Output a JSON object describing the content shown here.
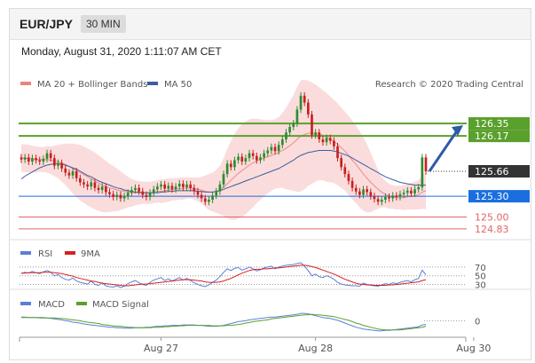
{
  "header": {
    "pair": "EUR/JPY",
    "timeframe": "30 MIN"
  },
  "timestamp": "Monday, August 31, 2020 1:11:07 AM CET",
  "copyright": "Research © 2020 Trading Central",
  "colors": {
    "candle_up": "#2e8b2e",
    "candle_down": "#c62020",
    "bollinger": "#f08080",
    "ma50": "#3a5fa0",
    "resistance": "#5aa02c",
    "support_blue": "#1a6fe0",
    "support_red": "#e06666",
    "arrow": "#2f5aa8",
    "rsi": "#5b7fd8",
    "rsi_ma": "#d62020",
    "macd": "#5b7fd8",
    "macd_signal": "#5aa02c"
  },
  "chart_data": [
    {
      "type": "candlestick",
      "legend": [
        {
          "name": "MA 20 + Bollinger Bands",
          "color": "#f08080"
        },
        {
          "name": "MA 50",
          "color": "#3a5fa0"
        }
      ],
      "ylim": [
        124.7,
        126.85
      ],
      "x_ticks": [
        {
          "label": "Aug 27",
          "index": 38
        },
        {
          "label": "Aug 28",
          "index": 80
        },
        {
          "label": "Aug 30",
          "index": 123
        }
      ],
      "levels": [
        {
          "label": "126.35",
          "value": 126.35,
          "color": "#5aa02c",
          "style": "solid",
          "tag": "box"
        },
        {
          "label": "126.17",
          "value": 126.17,
          "color": "#5aa02c",
          "style": "solid",
          "tag": "box"
        },
        {
          "label": "125.66",
          "value": 125.66,
          "color": "#333333",
          "style": "dotted",
          "tag": "box"
        },
        {
          "label": "125.30",
          "value": 125.3,
          "color": "#1a6fe0",
          "style": "solid",
          "tag": "box"
        },
        {
          "label": "125.00",
          "value": 125.0,
          "color": "#e06666",
          "style": "solid",
          "tag": "text"
        },
        {
          "label": "124.83",
          "value": 124.83,
          "color": "#e06666",
          "style": "solid",
          "tag": "text"
        }
      ],
      "close": [
        125.83,
        125.86,
        125.8,
        125.85,
        125.82,
        125.8,
        125.84,
        125.92,
        125.85,
        125.74,
        125.78,
        125.7,
        125.64,
        125.6,
        125.66,
        125.56,
        125.5,
        125.47,
        125.44,
        125.5,
        125.42,
        125.39,
        125.44,
        125.36,
        125.33,
        125.29,
        125.32,
        125.27,
        125.3,
        125.35,
        125.39,
        125.42,
        125.37,
        125.32,
        125.29,
        125.35,
        125.4,
        125.44,
        125.47,
        125.41,
        125.45,
        125.4,
        125.44,
        125.48,
        125.43,
        125.47,
        125.42,
        125.37,
        125.32,
        125.27,
        125.22,
        125.25,
        125.31,
        125.37,
        125.47,
        125.62,
        125.77,
        125.72,
        125.82,
        125.87,
        125.8,
        125.85,
        125.92,
        125.88,
        125.82,
        125.86,
        125.92,
        125.96,
        126.01,
        125.95,
        126.04,
        126.12,
        126.22,
        126.3,
        126.35,
        126.55,
        126.75,
        126.65,
        126.48,
        126.18,
        126.22,
        126.12,
        126.08,
        126.14,
        126.1,
        126.02,
        125.85,
        125.72,
        125.62,
        125.52,
        125.42,
        125.37,
        125.32,
        125.4,
        125.36,
        125.3,
        125.26,
        125.22,
        125.25,
        125.29,
        125.27,
        125.31,
        125.29,
        125.33,
        125.35,
        125.38,
        125.34,
        125.4,
        125.43,
        125.86,
        125.66
      ],
      "ma20": [
        125.85,
        125.85,
        125.84,
        125.84,
        125.83,
        125.83,
        125.83,
        125.83,
        125.82,
        125.81,
        125.8,
        125.78,
        125.76,
        125.73,
        125.7,
        125.67,
        125.64,
        125.61,
        125.58,
        125.55,
        125.52,
        125.49,
        125.46,
        125.44,
        125.42,
        125.41,
        125.39,
        125.38,
        125.37,
        125.36,
        125.35,
        125.35,
        125.35,
        125.35,
        125.35,
        125.35,
        125.36,
        125.37,
        125.37,
        125.38,
        125.39,
        125.4,
        125.4,
        125.41,
        125.41,
        125.42,
        125.42,
        125.41,
        125.4,
        125.39,
        125.37,
        125.36,
        125.36,
        125.37,
        125.39,
        125.43,
        125.48,
        125.53,
        125.58,
        125.63,
        125.67,
        125.71,
        125.75,
        125.78,
        125.81,
        125.83,
        125.85,
        125.87,
        125.89,
        125.91,
        125.93,
        125.96,
        125.99,
        126.03,
        126.07,
        126.12,
        126.17,
        126.19,
        126.21,
        126.21,
        126.21,
        126.2,
        126.18,
        126.15,
        126.12,
        126.09,
        126.05,
        126.0,
        125.95,
        125.89,
        125.82,
        125.76,
        125.69,
        125.62,
        125.56,
        125.5,
        125.45,
        125.4,
        125.36,
        125.33,
        125.3,
        125.29,
        125.28,
        125.28,
        125.28,
        125.29,
        125.3,
        125.31,
        125.32,
        125.36,
        125.38
      ],
      "bb_upper": [
        126.05,
        126.05,
        126.04,
        126.03,
        126.02,
        126.01,
        126.01,
        126.02,
        126.02,
        126.03,
        126.04,
        126.05,
        126.06,
        126.06,
        126.06,
        126.05,
        126.04,
        126.02,
        125.99,
        125.96,
        125.93,
        125.89,
        125.85,
        125.81,
        125.77,
        125.74,
        125.7,
        125.66,
        125.62,
        125.58,
        125.55,
        125.53,
        125.52,
        125.51,
        125.51,
        125.51,
        125.52,
        125.53,
        125.54,
        125.55,
        125.56,
        125.56,
        125.56,
        125.57,
        125.57,
        125.57,
        125.57,
        125.57,
        125.57,
        125.58,
        125.6,
        125.62,
        125.64,
        125.68,
        125.74,
        125.85,
        125.98,
        126.1,
        126.2,
        126.28,
        126.34,
        126.38,
        126.41,
        126.42,
        126.42,
        126.41,
        126.4,
        126.4,
        126.4,
        126.41,
        126.44,
        126.5,
        126.58,
        126.67,
        126.76,
        126.88,
        126.97,
        126.98,
        126.97,
        126.94,
        126.91,
        126.87,
        126.83,
        126.79,
        126.74,
        126.69,
        126.64,
        126.58,
        126.52,
        126.46,
        126.39,
        126.32,
        126.24,
        126.15,
        126.05,
        125.93,
        125.8,
        125.68,
        125.58,
        125.52,
        125.48,
        125.46,
        125.45,
        125.45,
        125.46,
        125.47,
        125.49,
        125.51,
        125.53,
        125.6,
        125.65
      ],
      "bb_lower": [
        125.65,
        125.65,
        125.64,
        125.65,
        125.64,
        125.65,
        125.65,
        125.64,
        125.62,
        125.59,
        125.56,
        125.51,
        125.46,
        125.4,
        125.34,
        125.29,
        125.24,
        125.2,
        125.17,
        125.14,
        125.11,
        125.09,
        125.07,
        125.07,
        125.07,
        125.08,
        125.08,
        125.1,
        125.12,
        125.14,
        125.15,
        125.17,
        125.18,
        125.19,
        125.19,
        125.19,
        125.2,
        125.21,
        125.2,
        125.21,
        125.22,
        125.24,
        125.24,
        125.25,
        125.25,
        125.27,
        125.27,
        125.25,
        125.23,
        125.2,
        125.14,
        125.1,
        125.08,
        125.06,
        125.04,
        125.01,
        124.98,
        124.96,
        124.96,
        124.98,
        125.0,
        125.04,
        125.09,
        125.14,
        125.2,
        125.25,
        125.3,
        125.34,
        125.38,
        125.41,
        125.42,
        125.42,
        125.4,
        125.39,
        125.38,
        125.36,
        125.37,
        125.4,
        125.45,
        125.48,
        125.51,
        125.53,
        125.53,
        125.51,
        125.5,
        125.49,
        125.46,
        125.42,
        125.38,
        125.32,
        125.25,
        125.2,
        125.14,
        125.09,
        125.07,
        125.07,
        125.1,
        125.12,
        125.14,
        125.14,
        125.12,
        125.12,
        125.11,
        125.11,
        125.1,
        125.11,
        125.11,
        125.11,
        125.11,
        125.12,
        125.11
      ],
      "ma50": [
        125.55,
        125.59,
        125.62,
        125.65,
        125.68,
        125.71,
        125.73,
        125.75,
        125.76,
        125.77,
        125.77,
        125.76,
        125.75,
        125.73,
        125.71,
        125.69,
        125.66,
        125.63,
        125.6,
        125.58,
        125.55,
        125.52,
        125.5,
        125.48,
        125.46,
        125.44,
        125.42,
        125.41,
        125.39,
        125.38,
        125.37,
        125.36,
        125.36,
        125.35,
        125.35,
        125.35,
        125.35,
        125.35,
        125.36,
        125.36,
        125.37,
        125.37,
        125.38,
        125.38,
        125.38,
        125.38,
        125.38,
        125.38,
        125.37,
        125.37,
        125.36,
        125.36,
        125.36,
        125.37,
        125.38,
        125.4,
        125.42,
        125.44,
        125.46,
        125.48,
        125.5,
        125.52,
        125.54,
        125.56,
        125.58,
        125.6,
        125.62,
        125.64,
        125.66,
        125.68,
        125.7,
        125.73,
        125.76,
        125.79,
        125.82,
        125.86,
        125.89,
        125.91,
        125.93,
        125.94,
        125.95,
        125.96,
        125.96,
        125.96,
        125.96,
        125.95,
        125.94,
        125.92,
        125.9,
        125.88,
        125.85,
        125.82,
        125.79,
        125.76,
        125.73,
        125.7,
        125.67,
        125.64,
        125.61,
        125.58,
        125.56,
        125.54,
        125.52,
        125.5,
        125.49,
        125.48,
        125.47,
        125.46,
        125.46,
        125.46,
        125.46
      ]
    },
    {
      "type": "line",
      "legend": [
        {
          "name": "RSI",
          "color": "#5b7fd8"
        },
        {
          "name": "9MA",
          "color": "#d62020"
        }
      ],
      "ylim": [
        25,
        80
      ],
      "y_ticks": [
        "70",
        "50",
        "30"
      ],
      "rsi": [
        55,
        58,
        56,
        60,
        57,
        55,
        59,
        62,
        58,
        50,
        53,
        46,
        42,
        40,
        45,
        38,
        35,
        33,
        31,
        38,
        30,
        28,
        34,
        27,
        25,
        24,
        27,
        23,
        26,
        32,
        36,
        39,
        34,
        30,
        28,
        35,
        40,
        43,
        46,
        39,
        43,
        38,
        42,
        46,
        40,
        44,
        39,
        34,
        30,
        27,
        25,
        29,
        35,
        40,
        48,
        58,
        66,
        62,
        67,
        69,
        63,
        66,
        70,
        66,
        61,
        64,
        68,
        70,
        72,
        66,
        70,
        72,
        74,
        75,
        76,
        78,
        80,
        72,
        62,
        50,
        54,
        48,
        46,
        50,
        47,
        42,
        35,
        31,
        29,
        28,
        27,
        27,
        26,
        33,
        30,
        28,
        27,
        26,
        29,
        32,
        30,
        34,
        32,
        35,
        37,
        39,
        36,
        41,
        44,
        63,
        52
      ],
      "ma9": [
        56,
        56,
        57,
        57,
        57,
        57,
        58,
        58,
        58,
        57,
        56,
        55,
        53,
        51,
        49,
        46,
        44,
        42,
        40,
        38,
        37,
        35,
        33,
        32,
        31,
        30,
        29,
        28,
        27,
        27,
        28,
        29,
        30,
        31,
        31,
        32,
        33,
        34,
        35,
        36,
        37,
        38,
        39,
        40,
        41,
        41,
        41,
        40,
        39,
        38,
        36,
        35,
        35,
        35,
        36,
        38,
        41,
        44,
        48,
        52,
        56,
        59,
        62,
        64,
        65,
        65,
        66,
        66,
        67,
        68,
        68,
        69,
        70,
        71,
        72,
        73,
        74,
        74,
        73,
        71,
        69,
        66,
        63,
        60,
        57,
        54,
        50,
        46,
        42,
        39,
        36,
        33,
        31,
        30,
        29,
        29,
        28,
        28,
        28,
        28,
        29,
        29,
        30,
        31,
        32,
        33,
        34,
        35,
        36,
        39,
        41
      ]
    },
    {
      "type": "line",
      "legend": [
        {
          "name": "MACD",
          "color": "#5b7fd8"
        },
        {
          "name": "MACD Signal",
          "color": "#5aa02c"
        }
      ],
      "ylim": [
        -0.32,
        0.22
      ],
      "y_ticks": [
        "0"
      ],
      "macd": [
        0.08,
        0.08,
        0.07,
        0.07,
        0.07,
        0.06,
        0.06,
        0.06,
        0.05,
        0.04,
        0.03,
        0.02,
        0.0,
        -0.01,
        -0.03,
        -0.04,
        -0.05,
        -0.07,
        -0.08,
        -0.09,
        -0.1,
        -0.11,
        -0.12,
        -0.13,
        -0.14,
        -0.14,
        -0.15,
        -0.15,
        -0.16,
        -0.16,
        -0.16,
        -0.15,
        -0.15,
        -0.15,
        -0.14,
        -0.14,
        -0.13,
        -0.12,
        -0.12,
        -0.11,
        -0.11,
        -0.1,
        -0.1,
        -0.1,
        -0.09,
        -0.09,
        -0.09,
        -0.09,
        -0.1,
        -0.1,
        -0.11,
        -0.12,
        -0.12,
        -0.12,
        -0.11,
        -0.1,
        -0.08,
        -0.06,
        -0.04,
        -0.02,
        -0.01,
        0.0,
        0.02,
        0.03,
        0.04,
        0.05,
        0.06,
        0.07,
        0.08,
        0.08,
        0.09,
        0.1,
        0.11,
        0.12,
        0.13,
        0.14,
        0.16,
        0.16,
        0.15,
        0.13,
        0.11,
        0.09,
        0.07,
        0.06,
        0.05,
        0.03,
        0.01,
        -0.02,
        -0.05,
        -0.08,
        -0.11,
        -0.14,
        -0.16,
        -0.18,
        -0.19,
        -0.2,
        -0.21,
        -0.22,
        -0.22,
        -0.21,
        -0.21,
        -0.2,
        -0.19,
        -0.18,
        -0.17,
        -0.16,
        -0.15,
        -0.14,
        -0.13,
        -0.09,
        -0.08
      ],
      "signal": [
        0.07,
        0.07,
        0.07,
        0.07,
        0.07,
        0.07,
        0.07,
        0.06,
        0.06,
        0.06,
        0.05,
        0.05,
        0.04,
        0.03,
        0.02,
        0.01,
        0.0,
        -0.02,
        -0.03,
        -0.04,
        -0.05,
        -0.06,
        -0.08,
        -0.09,
        -0.1,
        -0.11,
        -0.12,
        -0.12,
        -0.13,
        -0.14,
        -0.14,
        -0.15,
        -0.15,
        -0.15,
        -0.15,
        -0.15,
        -0.14,
        -0.14,
        -0.14,
        -0.13,
        -0.13,
        -0.12,
        -0.12,
        -0.11,
        -0.11,
        -0.1,
        -0.1,
        -0.1,
        -0.1,
        -0.1,
        -0.1,
        -0.1,
        -0.11,
        -0.11,
        -0.11,
        -0.11,
        -0.1,
        -0.1,
        -0.09,
        -0.08,
        -0.07,
        -0.05,
        -0.04,
        -0.02,
        -0.01,
        0.0,
        0.01,
        0.02,
        0.04,
        0.05,
        0.06,
        0.07,
        0.08,
        0.09,
        0.1,
        0.11,
        0.12,
        0.13,
        0.13,
        0.14,
        0.13,
        0.13,
        0.12,
        0.11,
        0.1,
        0.09,
        0.07,
        0.05,
        0.03,
        0.01,
        -0.02,
        -0.05,
        -0.07,
        -0.1,
        -0.12,
        -0.14,
        -0.16,
        -0.18,
        -0.19,
        -0.2,
        -0.2,
        -0.2,
        -0.2,
        -0.2,
        -0.19,
        -0.18,
        -0.17,
        -0.16,
        -0.15,
        -0.14,
        -0.12
      ]
    }
  ]
}
